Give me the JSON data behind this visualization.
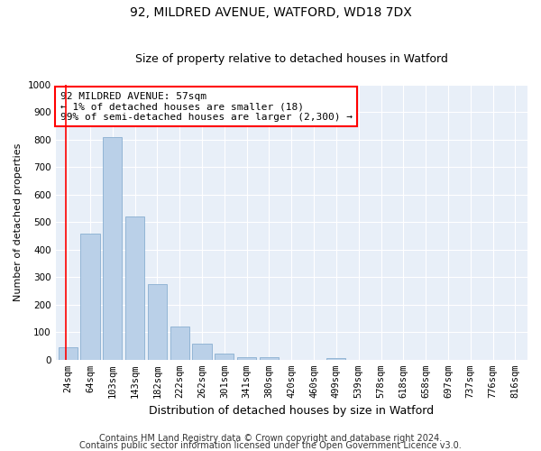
{
  "title1": "92, MILDRED AVENUE, WATFORD, WD18 7DX",
  "title2": "Size of property relative to detached houses in Watford",
  "xlabel": "Distribution of detached houses by size in Watford",
  "ylabel": "Number of detached properties",
  "categories": [
    "24sqm",
    "64sqm",
    "103sqm",
    "143sqm",
    "182sqm",
    "222sqm",
    "262sqm",
    "301sqm",
    "341sqm",
    "380sqm",
    "420sqm",
    "460sqm",
    "499sqm",
    "539sqm",
    "578sqm",
    "618sqm",
    "658sqm",
    "697sqm",
    "737sqm",
    "776sqm",
    "816sqm"
  ],
  "values": [
    45,
    460,
    810,
    520,
    275,
    120,
    58,
    22,
    10,
    10,
    0,
    0,
    5,
    0,
    0,
    0,
    0,
    0,
    0,
    0,
    0
  ],
  "bar_color": "#bad0e8",
  "bar_edge_color": "#89afd1",
  "annotation_text": "92 MILDRED AVENUE: 57sqm\n← 1% of detached houses are smaller (18)\n99% of semi-detached houses are larger (2,300) →",
  "annotation_box_color": "white",
  "annotation_box_edge_color": "red",
  "red_line_x": -0.08,
  "ylim": [
    0,
    1000
  ],
  "yticks": [
    0,
    100,
    200,
    300,
    400,
    500,
    600,
    700,
    800,
    900,
    1000
  ],
  "background_color": "#e8eff8",
  "grid_color": "white",
  "footer1": "Contains HM Land Registry data © Crown copyright and database right 2024.",
  "footer2": "Contains public sector information licensed under the Open Government Licence v3.0.",
  "title1_fontsize": 10,
  "title2_fontsize": 9,
  "xlabel_fontsize": 9,
  "ylabel_fontsize": 8,
  "tick_fontsize": 7.5,
  "footer_fontsize": 7,
  "annotation_fontsize": 8
}
